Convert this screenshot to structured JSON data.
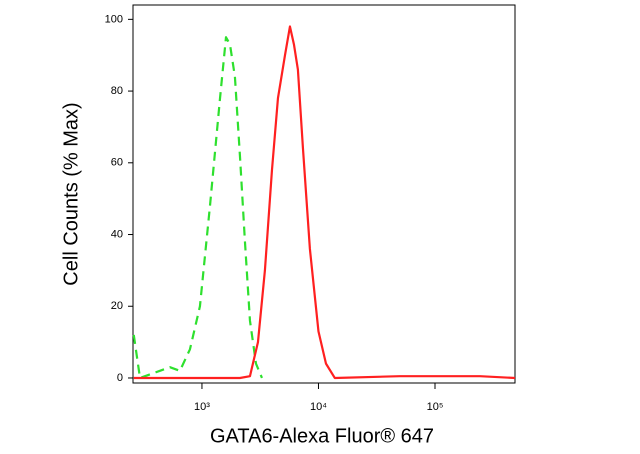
{
  "chart_data": {
    "type": "line",
    "xlabel": "GATA6-Alexa Fluor® 647",
    "ylabel": "Cell Counts (% Max)",
    "xscale": "log",
    "xlim": [
      256,
      486000
    ],
    "ylim": [
      -1.4,
      104
    ],
    "xticks": [
      {
        "value": 1000,
        "label": "10³"
      },
      {
        "value": 10000,
        "label": "10⁴"
      },
      {
        "value": 100000,
        "label": "10⁵"
      }
    ],
    "yticks": [
      0,
      20,
      40,
      60,
      80,
      100
    ],
    "grid": false,
    "series": [
      {
        "color": "#2ee02e",
        "dash": true,
        "x": [
          260,
          294,
          358,
          436,
          531,
          647,
          789,
          961,
          1172,
          1429,
          1608,
          1740,
          1918,
          2118,
          2339,
          2582,
          2909,
          3274
        ],
        "values": [
          12,
          0,
          1,
          2,
          3,
          2,
          8,
          20,
          48,
          78,
          95,
          93,
          84,
          62,
          38,
          16,
          4,
          0
        ]
      },
      {
        "color": "#ff2020",
        "dash": false,
        "x": [
          260,
          2118,
          2582,
          3025,
          3470,
          3990,
          4490,
          5160,
          5690,
          6160,
          6660,
          7360,
          8440,
          10000,
          11600,
          13800,
          49900,
          243000,
          486000
        ],
        "values": [
          0,
          0,
          0.5,
          10,
          30,
          58,
          78,
          90,
          98,
          93,
          86,
          64,
          36,
          13,
          4,
          0,
          0.5,
          0.5,
          0
        ]
      }
    ]
  }
}
